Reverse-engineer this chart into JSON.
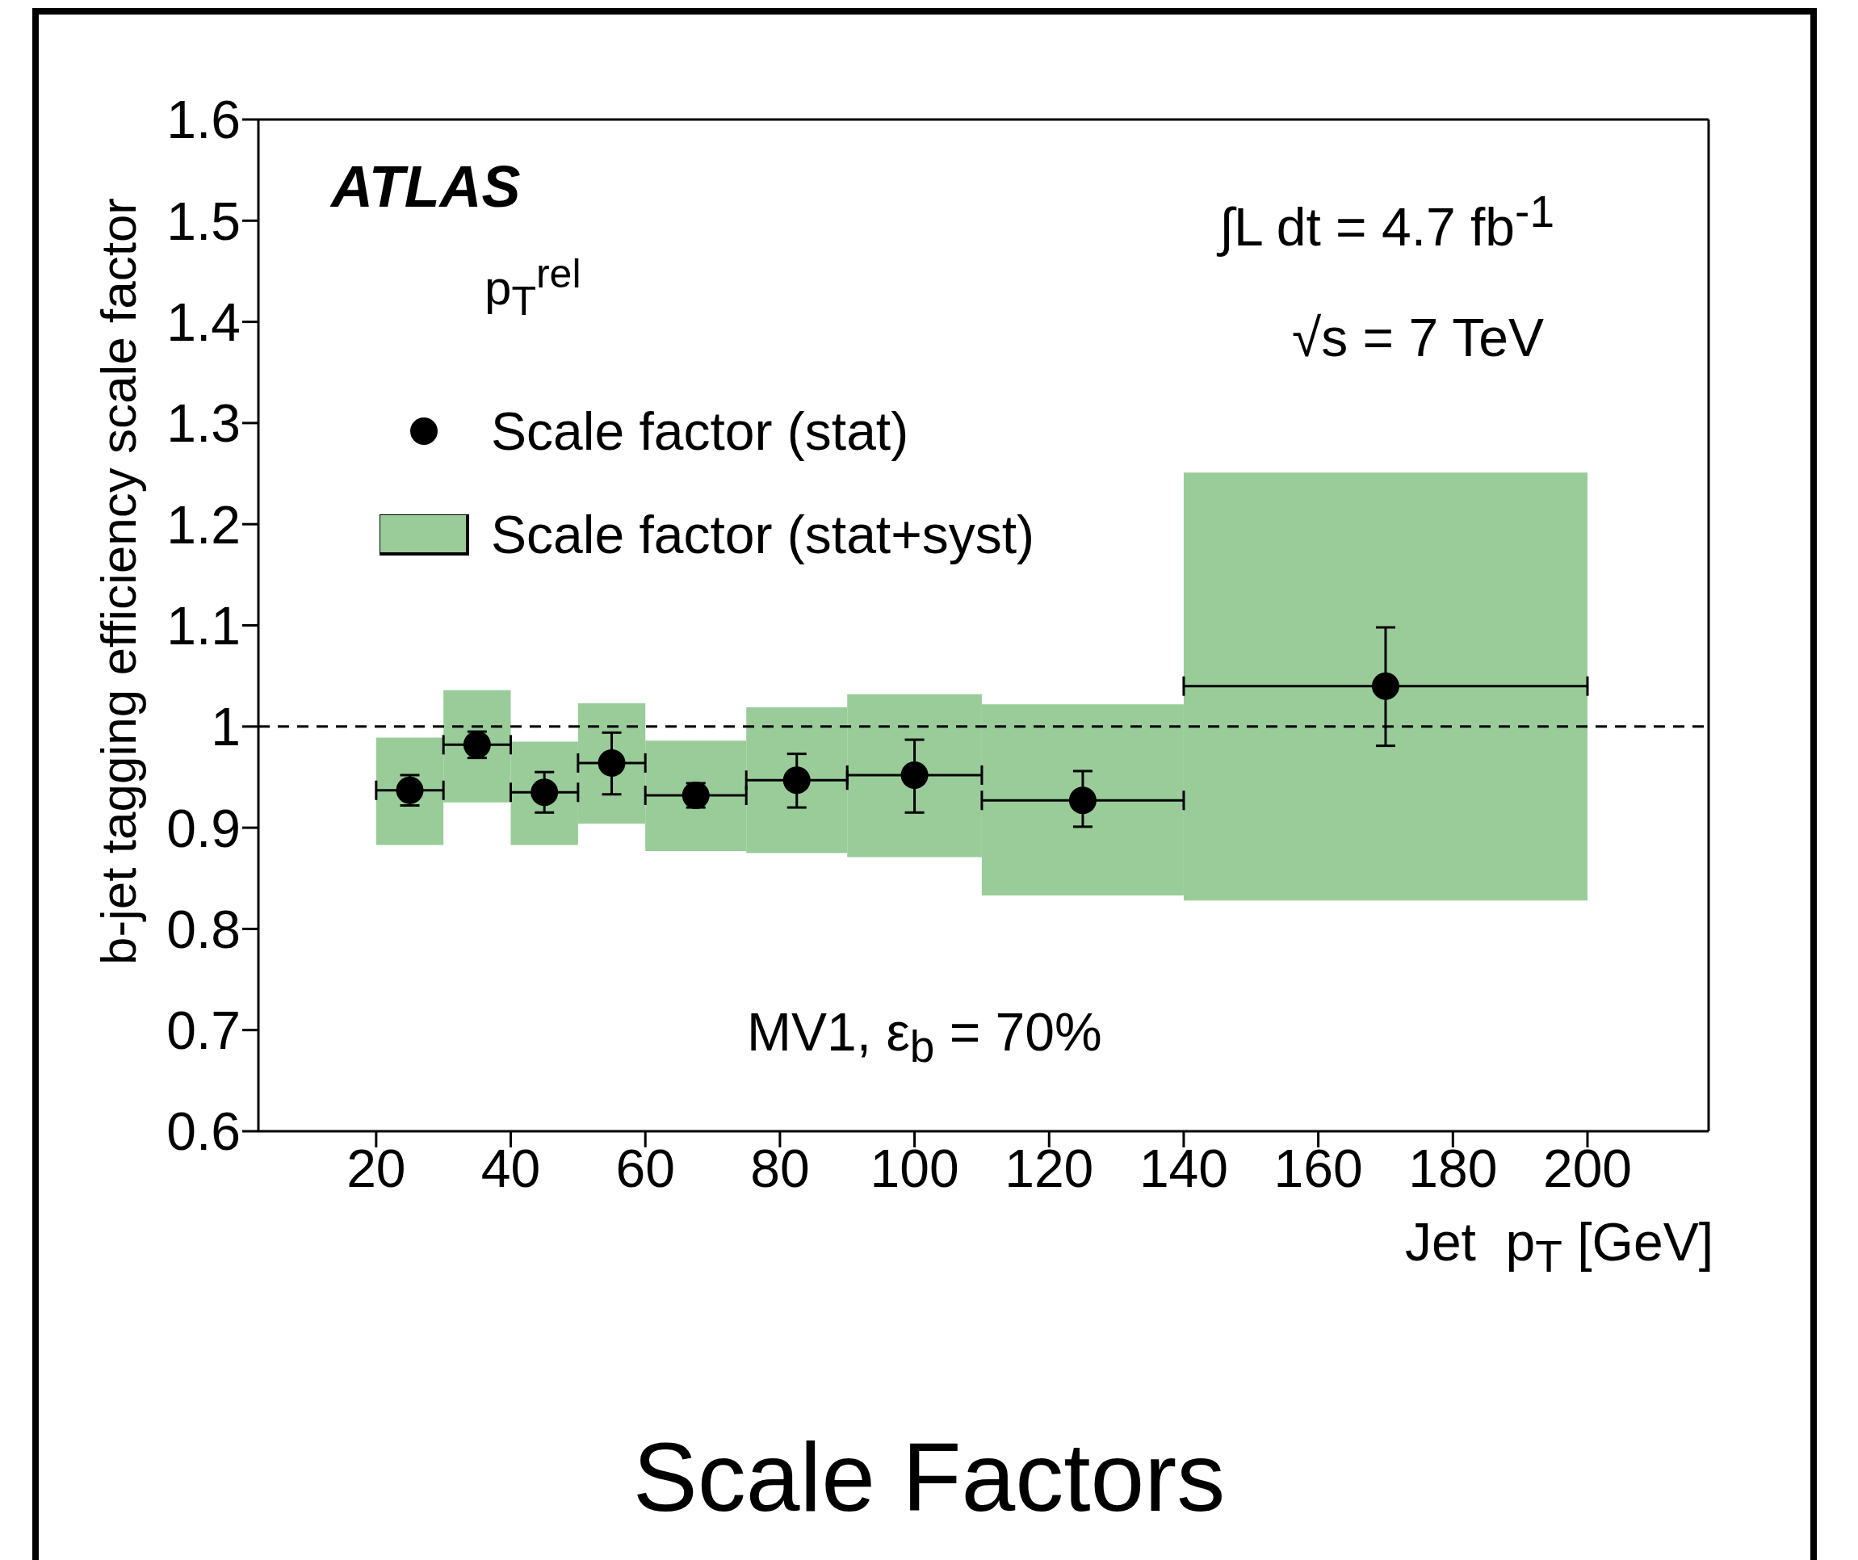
{
  "chart_data": {
    "type": "scatter",
    "title": "Scale Factors",
    "xlabel": "Jet  p$_{T}$ [GeV]",
    "ylabel": "b-jet tagging efficiency scale factor",
    "annotations": [
      "ATLAS",
      "p$_{T}$$^{rel}$",
      "∫L dt = 4.7 fb$^{-1}$",
      "√s = 7 TeV",
      "MV1, ε$_{b}$ = 70%"
    ],
    "xlim": [
      2.5,
      218
    ],
    "xticks": [
      20,
      40,
      60,
      80,
      100,
      120,
      140,
      160,
      180,
      200
    ],
    "ylim": [
      0.6,
      1.6
    ],
    "yticks": [
      0.6,
      0.7,
      0.8,
      0.9,
      1,
      1.1,
      1.2,
      1.3,
      1.4,
      1.5,
      1.6
    ],
    "legend": "top left",
    "marker": "circle",
    "ref_lines": [
      {
        "axis": "y",
        "value": 1,
        "line_style": "dashed",
        "color": "#000000"
      }
    ],
    "series": [
      {
        "name": "Scale factor (stat)",
        "color": "#000000",
        "x": [
          25,
          35,
          45,
          55,
          67.5,
          82.5,
          100,
          125,
          170
        ],
        "values": [
          0.937,
          0.982,
          0.935,
          0.964,
          0.932,
          0.947,
          0.952,
          0.927,
          1.04
        ],
        "errors": [
          0.015,
          0.013,
          0.02,
          [
            0.933,
            0.994
          ],
          0.012,
          [
            0.92,
            0.973
          ],
          [
            0.915,
            0.987
          ],
          [
            0.901,
            0.956
          ],
          [
            0.981,
            1.098
          ]
        ],
        "xerrors": [
          [
            20,
            30
          ],
          [
            30,
            40
          ],
          [
            40,
            50
          ],
          [
            50,
            60
          ],
          [
            60,
            75
          ],
          [
            75,
            90
          ],
          [
            90,
            110
          ],
          [
            110,
            140
          ],
          [
            140,
            200
          ]
        ]
      },
      {
        "name": "Scale factor (stat+syst)",
        "type": "histogram",
        "color": "#99cc99",
        "bins": [
          20,
          30,
          40,
          50,
          60,
          75,
          90,
          110,
          140,
          200
        ],
        "base": [
          0.883,
          0.925,
          0.883,
          0.904,
          0.877,
          0.875,
          0.871,
          0.833,
          0.828
        ],
        "values": [
          0.106,
          0.111,
          0.102,
          0.119,
          0.109,
          0.144,
          0.161,
          0.189,
          0.423
        ]
      }
    ]
  }
}
